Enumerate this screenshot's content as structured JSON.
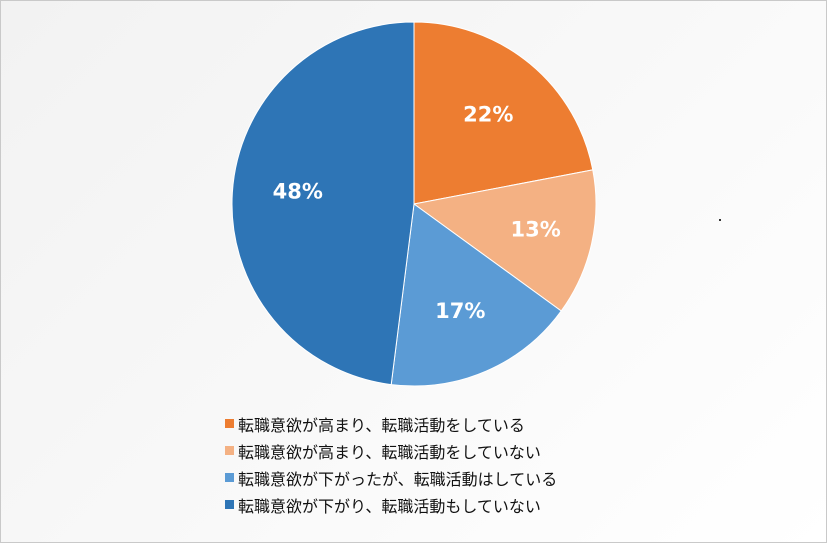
{
  "chart_data": {
    "type": "pie",
    "title": "",
    "slices": [
      {
        "label": "転職意欲が高まり、転職活動をしている",
        "value": 22,
        "display": "22%",
        "color": "#ED7D31"
      },
      {
        "label": "転職意欲が高まり、転職活動をしていない",
        "value": 13,
        "display": "13%",
        "color": "#F4B183"
      },
      {
        "label": "転職意欲が下がったが、転職活動はしている",
        "value": 17,
        "display": "17%",
        "color": "#5B9BD5"
      },
      {
        "label": "転職意欲が下がり、転職活動もしていない",
        "value": 48,
        "display": "48%",
        "color": "#2E75B6"
      }
    ],
    "start_angle_deg": 0,
    "direction": "clockwise",
    "legend_position": "bottom"
  }
}
